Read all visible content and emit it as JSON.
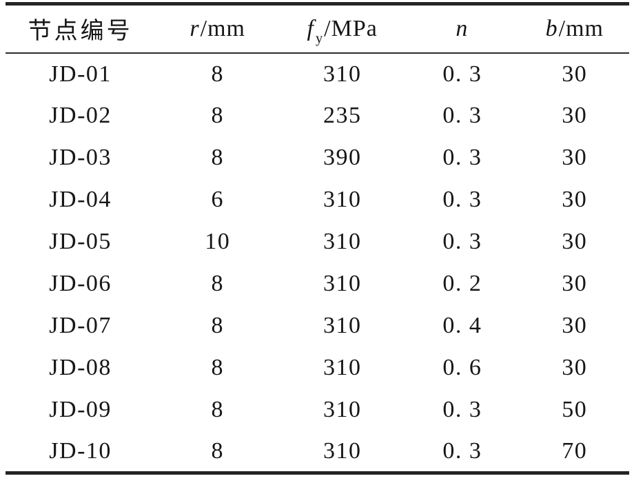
{
  "table": {
    "description_colors": {
      "rule_color": "#242424",
      "text_color": "#161616",
      "background": "#ffffff"
    },
    "header": [
      {
        "text": "节点编号"
      },
      {
        "var": "r",
        "sub": "",
        "unit": "/mm"
      },
      {
        "var": "f",
        "sub": "y",
        "unit": "/MPa"
      },
      {
        "var": "n",
        "sub": "",
        "unit": ""
      },
      {
        "var": "b",
        "sub": "",
        "unit": "/mm"
      }
    ],
    "rows": [
      {
        "cells": [
          "JD-01",
          "8",
          "310",
          "0. 3",
          "30"
        ]
      },
      {
        "cells": [
          "JD-02",
          "8",
          "235",
          "0. 3",
          "30"
        ]
      },
      {
        "cells": [
          "JD-03",
          "8",
          "390",
          "0. 3",
          "30"
        ]
      },
      {
        "cells": [
          "JD-04",
          "6",
          "310",
          "0. 3",
          "30"
        ]
      },
      {
        "cells": [
          "JD-05",
          "10",
          "310",
          "0. 3",
          "30"
        ]
      },
      {
        "cells": [
          "JD-06",
          "8",
          "310",
          "0. 2",
          "30"
        ]
      },
      {
        "cells": [
          "JD-07",
          "8",
          "310",
          "0. 4",
          "30"
        ]
      },
      {
        "cells": [
          "JD-08",
          "8",
          "310",
          "0. 6",
          "30"
        ]
      },
      {
        "cells": [
          "JD-09",
          "8",
          "310",
          "0. 3",
          "50"
        ]
      },
      {
        "cells": [
          "JD-10",
          "8",
          "310",
          "0. 3",
          "70"
        ]
      }
    ]
  }
}
